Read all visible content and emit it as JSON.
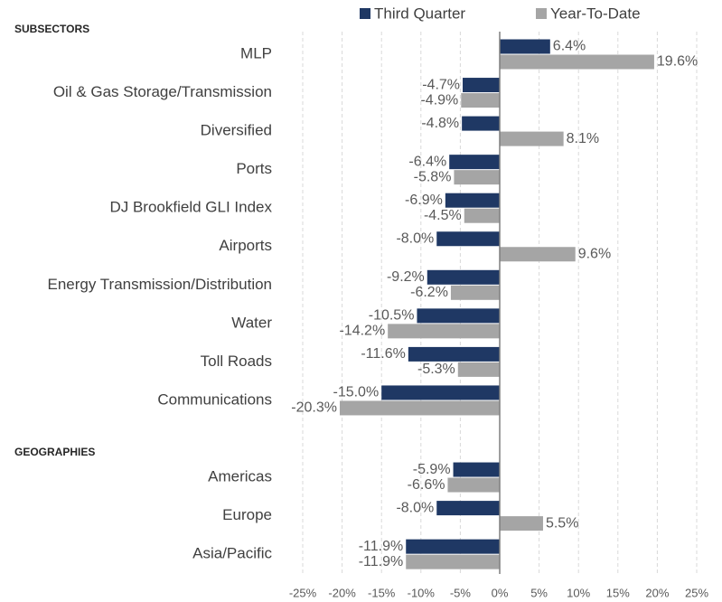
{
  "chart_data": {
    "type": "bar",
    "orientation": "horizontal",
    "section_labels": [
      "SUBSECTORS",
      "GEOGRAPHIES"
    ],
    "categories": [
      "MLP",
      "Oil & Gas Storage/Transmission",
      "Diversified",
      "Ports",
      "DJ Brookfield GLI Index",
      "Airports",
      "Energy Transmission/Distribution",
      "Water",
      "Toll Roads",
      "Communications",
      null,
      "Americas",
      "Europe",
      "Asia/Pacific"
    ],
    "series": [
      {
        "name": "Third Quarter",
        "color": "#1f3864",
        "values": [
          6.4,
          -4.7,
          -4.8,
          -6.4,
          -6.9,
          -8.0,
          -9.2,
          -10.5,
          -11.6,
          -15.0,
          null,
          -5.9,
          -8.0,
          -11.9
        ],
        "value_labels": [
          "6.4%",
          "-4.7%",
          "-4.8%",
          "-6.4%",
          "-6.9%",
          "-8.0%",
          "-9.2%",
          "-10.5%",
          "-11.6%",
          "-15.0%",
          null,
          "-5.9%",
          "-8.0%",
          "-11.9%"
        ]
      },
      {
        "name": "Year-To-Date",
        "color": "#a5a5a5",
        "values": [
          19.6,
          -4.9,
          8.1,
          -5.8,
          -4.5,
          9.6,
          -6.2,
          -14.2,
          -5.3,
          -20.3,
          null,
          -6.6,
          5.5,
          -11.9
        ],
        "value_labels": [
          "19.6%",
          "-4.9%",
          "8.1%",
          "-5.8%",
          "-4.5%",
          "9.6%",
          "-6.2%",
          "-14.2%",
          "-5.3%",
          "-20.3%",
          null,
          "-6.6%",
          "5.5%",
          "-11.9%"
        ]
      }
    ],
    "xlim": [
      -25,
      25
    ],
    "xticks": [
      {
        "value": -25,
        "label": "-25%"
      },
      {
        "value": -20,
        "label": "-20%"
      },
      {
        "value": -15,
        "label": "-15%"
      },
      {
        "value": -10,
        "label": "-10%"
      },
      {
        "value": -5,
        "label": "-5%"
      },
      {
        "value": 0,
        "label": "0%"
      },
      {
        "value": 5,
        "label": "5%"
      },
      {
        "value": 10,
        "label": "10%"
      },
      {
        "value": 15,
        "label": "15%"
      },
      {
        "value": 20,
        "label": "20%"
      },
      {
        "value": 25,
        "label": "25%"
      }
    ],
    "grid": true,
    "legend": "top"
  }
}
